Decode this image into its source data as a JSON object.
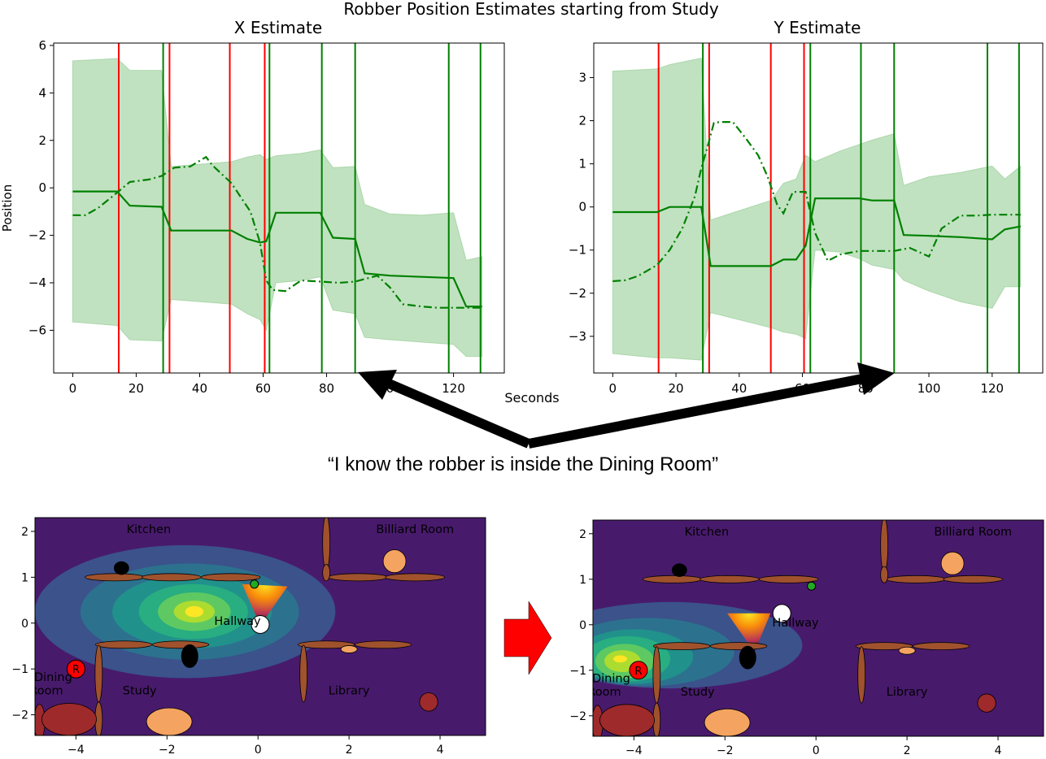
{
  "figure": {
    "suptitle": "Robber Position Estimates starting from Study",
    "shared_xlabel": "Seconds",
    "quote": "“I know the robber is inside the Dining Room”",
    "arrow_color": "#ff0000",
    "arrow_stroke": "#000000"
  },
  "chart_data": [
    {
      "type": "line",
      "title": "X Estimate",
      "xlabel": "Seconds",
      "ylabel": "Position",
      "xlim": [
        -6,
        136
      ],
      "ylim": [
        -7.8,
        6.1
      ],
      "xticks": [
        "0",
        "20",
        "40",
        "60",
        "80",
        "100",
        "120"
      ],
      "xtick_values": [
        0,
        20,
        40,
        60,
        80,
        100,
        120
      ],
      "yticks": [
        "−6",
        "−4",
        "−2",
        "0",
        "2",
        "4",
        "6"
      ],
      "ytick_values": [
        -6,
        -4,
        -2,
        0,
        2,
        4,
        6
      ],
      "grid": false,
      "series": [
        {
          "style": "solid",
          "color": "#008000",
          "x": [
            0,
            14,
            18,
            28,
            31,
            50,
            55,
            59,
            61,
            64,
            72,
            78,
            82,
            89,
            92,
            100,
            110,
            120,
            124,
            129
          ],
          "y": [
            -0.15,
            -0.15,
            -0.75,
            -0.8,
            -1.8,
            -1.8,
            -2.15,
            -2.3,
            -2.25,
            -1.05,
            -1.05,
            -1.05,
            -2.1,
            -2.15,
            -3.6,
            -3.7,
            -3.75,
            -3.8,
            -5.0,
            -5.0
          ]
        },
        {
          "style": "dashdot",
          "color": "#008000",
          "x": [
            0,
            4,
            8,
            14,
            18,
            24,
            28,
            32,
            37,
            42,
            44,
            50,
            56,
            59,
            61,
            63,
            67,
            72,
            78,
            84,
            89,
            96,
            100,
            104,
            110,
            115,
            120,
            126,
            129
          ],
          "y": [
            -1.15,
            -1.15,
            -0.85,
            -0.2,
            0.25,
            0.35,
            0.5,
            0.85,
            0.9,
            1.3,
            0.95,
            0.2,
            -1.0,
            -2.3,
            -3.9,
            -4.3,
            -4.35,
            -3.9,
            -3.95,
            -4.0,
            -3.95,
            -3.7,
            -4.2,
            -4.9,
            -5.0,
            -5.05,
            -5.05,
            -5.05,
            -5.05
          ]
        },
        {
          "style": "band",
          "color": "#7ec27e",
          "x": [
            0,
            14,
            18,
            28,
            31,
            50,
            55,
            59,
            61,
            64,
            72,
            78,
            82,
            89,
            92,
            100,
            110,
            120,
            124,
            129
          ],
          "upper": [
            5.35,
            5.45,
            4.95,
            4.95,
            0.9,
            1.1,
            1.3,
            1.4,
            1.2,
            1.35,
            1.45,
            1.6,
            0.85,
            0.9,
            -0.7,
            -1.1,
            -1.15,
            -1.05,
            -3.05,
            -2.9
          ],
          "lower": [
            -5.65,
            -5.8,
            -6.4,
            -6.45,
            -4.7,
            -4.9,
            -5.3,
            -5.55,
            -6.0,
            -4.0,
            -3.9,
            -3.75,
            -5.15,
            -5.3,
            -6.3,
            -6.4,
            -6.5,
            -6.6,
            -7.1,
            -7.1
          ]
        }
      ],
      "vlines": [
        {
          "x": 14.5,
          "color": "#ff0000"
        },
        {
          "x": 28.5,
          "color": "#008000"
        },
        {
          "x": 30.5,
          "color": "#ff0000"
        },
        {
          "x": 49.5,
          "color": "#ff0000"
        },
        {
          "x": 60.5,
          "color": "#ff0000"
        },
        {
          "x": 62,
          "color": "#008000"
        },
        {
          "x": 78.5,
          "color": "#008000"
        },
        {
          "x": 89,
          "color": "#008000"
        },
        {
          "x": 118.5,
          "color": "#008000"
        },
        {
          "x": 128.5,
          "color": "#008000"
        }
      ]
    },
    {
      "type": "line",
      "title": "Y Estimate",
      "xlabel": "Seconds",
      "ylabel": "",
      "xlim": [
        -6,
        136
      ],
      "ylim": [
        -3.85,
        3.8
      ],
      "xticks": [
        "0",
        "20",
        "40",
        "60",
        "80",
        "100",
        "120"
      ],
      "xtick_values": [
        0,
        20,
        40,
        60,
        80,
        100,
        120
      ],
      "yticks": [
        "−3",
        "−2",
        "−1",
        "0",
        "1",
        "2",
        "3"
      ],
      "ytick_values": [
        -3,
        -2,
        -1,
        0,
        1,
        2,
        3
      ],
      "grid": false,
      "series": [
        {
          "style": "solid",
          "color": "#008000",
          "x": [
            0,
            14,
            18,
            28,
            31,
            50,
            54,
            58,
            61,
            64,
            72,
            78,
            82,
            89,
            92,
            100,
            110,
            120,
            124,
            129
          ],
          "y": [
            -0.12,
            -0.12,
            0.0,
            0.0,
            -1.37,
            -1.37,
            -1.22,
            -1.22,
            -0.9,
            0.2,
            0.2,
            0.2,
            0.15,
            0.15,
            -0.65,
            -0.67,
            -0.7,
            -0.75,
            -0.52,
            -0.45
          ],
          "mapped_x": true
        },
        {
          "style": "dashdot",
          "color": "#008000",
          "x": [
            0,
            4,
            8,
            14,
            18,
            22,
            26,
            28,
            30,
            32,
            34,
            38,
            42,
            46,
            49,
            52,
            54,
            57,
            61,
            64,
            68,
            72,
            78,
            84,
            89,
            94,
            100,
            104,
            110,
            115,
            120,
            126,
            129
          ],
          "y": [
            -1.72,
            -1.7,
            -1.6,
            -1.35,
            -1.0,
            -0.5,
            0.25,
            0.9,
            1.4,
            1.95,
            1.97,
            1.97,
            1.6,
            1.2,
            0.7,
            0.05,
            -0.15,
            0.35,
            0.35,
            -0.6,
            -1.25,
            -1.1,
            -1.02,
            -1.02,
            -1.02,
            -0.95,
            -1.15,
            -0.5,
            -0.2,
            -0.2,
            -0.18,
            -0.18,
            -0.18
          ]
        },
        {
          "style": "band",
          "color": "#7ec27e",
          "x": [
            0,
            14,
            18,
            28,
            31,
            50,
            54,
            58,
            61,
            64,
            72,
            78,
            82,
            89,
            92,
            100,
            110,
            120,
            124,
            129
          ],
          "upper": [
            3.15,
            3.2,
            3.3,
            3.45,
            -0.3,
            0.15,
            0.55,
            0.65,
            1.2,
            1.05,
            1.3,
            1.45,
            1.55,
            1.7,
            0.5,
            0.7,
            0.8,
            0.95,
            0.65,
            0.95
          ],
          "lower": [
            -3.4,
            -3.5,
            -3.5,
            -3.55,
            -2.45,
            -2.8,
            -2.9,
            -2.95,
            -3.05,
            -1.0,
            -1.05,
            -1.2,
            -1.35,
            -1.45,
            -1.7,
            -1.95,
            -2.2,
            -2.35,
            -1.85,
            -1.85
          ]
        }
      ],
      "vlines": [
        {
          "x": 14.5,
          "color": "#ff0000"
        },
        {
          "x": 28.5,
          "color": "#008000"
        },
        {
          "x": 30.5,
          "color": "#ff0000"
        },
        {
          "x": 50,
          "color": "#ff0000"
        },
        {
          "x": 60.5,
          "color": "#ff0000"
        },
        {
          "x": 62.5,
          "color": "#008000"
        },
        {
          "x": 78.5,
          "color": "#008000"
        },
        {
          "x": 89,
          "color": "#008000"
        },
        {
          "x": 118.5,
          "color": "#008000"
        },
        {
          "x": 128.5,
          "color": "#008000"
        }
      ]
    },
    {
      "type": "heatmap",
      "title": "",
      "xlim": [
        -4.9,
        5.0
      ],
      "ylim": [
        -2.45,
        2.3
      ],
      "xticks": [
        "−4",
        "−2",
        "0",
        "2",
        "4"
      ],
      "xtick_values": [
        -4,
        -2,
        0,
        2,
        4
      ],
      "yticks": [
        "−2",
        "−1",
        "0",
        "1",
        "2"
      ],
      "ytick_values": [
        -2,
        -1,
        0,
        1,
        2
      ],
      "background_color": "#481a6c",
      "density_peak": {
        "x": -1.4,
        "y": 0.25
      },
      "labels": [
        {
          "text": "Kitchen",
          "x": -2.4,
          "y": 2.05
        },
        {
          "text": "Billiard Room",
          "x": 3.45,
          "y": 2.05
        },
        {
          "text": "Hallway",
          "x": -0.45,
          "y": 0.05
        },
        {
          "text": "Dining",
          "x": -4.5,
          "y": -1.17
        },
        {
          "text": "Room",
          "x": -4.65,
          "y": -1.47
        },
        {
          "text": "Study",
          "x": -2.6,
          "y": -1.47
        },
        {
          "text": "Library",
          "x": 2.0,
          "y": -1.47
        }
      ],
      "robber_marker": {
        "text": "R",
        "x": -4.0,
        "y": -1.0
      },
      "robot_marker": {
        "x": 0.05,
        "y": -0.03
      },
      "target_marker": {
        "x": -0.08,
        "y": 0.85
      }
    },
    {
      "type": "heatmap",
      "title": "",
      "xlim": [
        -4.9,
        5.0
      ],
      "ylim": [
        -2.45,
        2.3
      ],
      "xticks": [
        "−4",
        "−2",
        "0",
        "2",
        "4"
      ],
      "xtick_values": [
        -4,
        -2,
        0,
        2,
        4
      ],
      "yticks": [
        "−2",
        "−1",
        "0",
        "1",
        "2"
      ],
      "ytick_values": [
        -2,
        -1,
        0,
        1,
        2
      ],
      "background_color": "#481a6c",
      "density_peak": {
        "x": -4.2,
        "y": -0.8
      },
      "labels": [
        {
          "text": "Kitchen",
          "x": -2.4,
          "y": 2.05
        },
        {
          "text": "Billiard Room",
          "x": 3.45,
          "y": 2.05
        },
        {
          "text": "Hallway",
          "x": -0.45,
          "y": 0.05
        },
        {
          "text": "Dining",
          "x": -4.5,
          "y": -1.17
        },
        {
          "text": "Room",
          "x": -4.65,
          "y": -1.47
        },
        {
          "text": "Study",
          "x": -2.6,
          "y": -1.47
        },
        {
          "text": "Library",
          "x": 2.0,
          "y": -1.47
        }
      ],
      "robber_marker": {
        "text": "R",
        "x": -3.9,
        "y": -1.0
      },
      "robot_marker": {
        "x": -0.75,
        "y": 0.25
      },
      "target_marker": {
        "x": -0.1,
        "y": 0.85
      }
    }
  ]
}
